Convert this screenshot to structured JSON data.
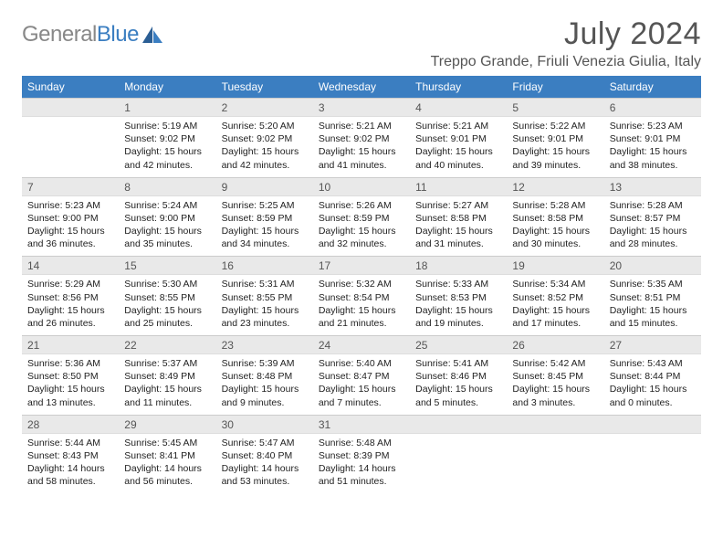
{
  "brand": {
    "part1": "General",
    "part2": "Blue"
  },
  "title": "July 2024",
  "location": "Treppo Grande, Friuli Venezia Giulia, Italy",
  "colors": {
    "header_bg": "#3b7ec1",
    "header_fg": "#ffffff",
    "daynum_bg": "#e9e9e9",
    "text": "#333333"
  },
  "weekdays": [
    "Sunday",
    "Monday",
    "Tuesday",
    "Wednesday",
    "Thursday",
    "Friday",
    "Saturday"
  ],
  "first_weekday_index": 1,
  "days": [
    {
      "n": 1,
      "sr": "5:19 AM",
      "ss": "9:02 PM",
      "dl": "15 hours and 42 minutes"
    },
    {
      "n": 2,
      "sr": "5:20 AM",
      "ss": "9:02 PM",
      "dl": "15 hours and 42 minutes"
    },
    {
      "n": 3,
      "sr": "5:21 AM",
      "ss": "9:02 PM",
      "dl": "15 hours and 41 minutes"
    },
    {
      "n": 4,
      "sr": "5:21 AM",
      "ss": "9:01 PM",
      "dl": "15 hours and 40 minutes"
    },
    {
      "n": 5,
      "sr": "5:22 AM",
      "ss": "9:01 PM",
      "dl": "15 hours and 39 minutes"
    },
    {
      "n": 6,
      "sr": "5:23 AM",
      "ss": "9:01 PM",
      "dl": "15 hours and 38 minutes"
    },
    {
      "n": 7,
      "sr": "5:23 AM",
      "ss": "9:00 PM",
      "dl": "15 hours and 36 minutes"
    },
    {
      "n": 8,
      "sr": "5:24 AM",
      "ss": "9:00 PM",
      "dl": "15 hours and 35 minutes"
    },
    {
      "n": 9,
      "sr": "5:25 AM",
      "ss": "8:59 PM",
      "dl": "15 hours and 34 minutes"
    },
    {
      "n": 10,
      "sr": "5:26 AM",
      "ss": "8:59 PM",
      "dl": "15 hours and 32 minutes"
    },
    {
      "n": 11,
      "sr": "5:27 AM",
      "ss": "8:58 PM",
      "dl": "15 hours and 31 minutes"
    },
    {
      "n": 12,
      "sr": "5:28 AM",
      "ss": "8:58 PM",
      "dl": "15 hours and 30 minutes"
    },
    {
      "n": 13,
      "sr": "5:28 AM",
      "ss": "8:57 PM",
      "dl": "15 hours and 28 minutes"
    },
    {
      "n": 14,
      "sr": "5:29 AM",
      "ss": "8:56 PM",
      "dl": "15 hours and 26 minutes"
    },
    {
      "n": 15,
      "sr": "5:30 AM",
      "ss": "8:55 PM",
      "dl": "15 hours and 25 minutes"
    },
    {
      "n": 16,
      "sr": "5:31 AM",
      "ss": "8:55 PM",
      "dl": "15 hours and 23 minutes"
    },
    {
      "n": 17,
      "sr": "5:32 AM",
      "ss": "8:54 PM",
      "dl": "15 hours and 21 minutes"
    },
    {
      "n": 18,
      "sr": "5:33 AM",
      "ss": "8:53 PM",
      "dl": "15 hours and 19 minutes"
    },
    {
      "n": 19,
      "sr": "5:34 AM",
      "ss": "8:52 PM",
      "dl": "15 hours and 17 minutes"
    },
    {
      "n": 20,
      "sr": "5:35 AM",
      "ss": "8:51 PM",
      "dl": "15 hours and 15 minutes"
    },
    {
      "n": 21,
      "sr": "5:36 AM",
      "ss": "8:50 PM",
      "dl": "15 hours and 13 minutes"
    },
    {
      "n": 22,
      "sr": "5:37 AM",
      "ss": "8:49 PM",
      "dl": "15 hours and 11 minutes"
    },
    {
      "n": 23,
      "sr": "5:39 AM",
      "ss": "8:48 PM",
      "dl": "15 hours and 9 minutes"
    },
    {
      "n": 24,
      "sr": "5:40 AM",
      "ss": "8:47 PM",
      "dl": "15 hours and 7 minutes"
    },
    {
      "n": 25,
      "sr": "5:41 AM",
      "ss": "8:46 PM",
      "dl": "15 hours and 5 minutes"
    },
    {
      "n": 26,
      "sr": "5:42 AM",
      "ss": "8:45 PM",
      "dl": "15 hours and 3 minutes"
    },
    {
      "n": 27,
      "sr": "5:43 AM",
      "ss": "8:44 PM",
      "dl": "15 hours and 0 minutes"
    },
    {
      "n": 28,
      "sr": "5:44 AM",
      "ss": "8:43 PM",
      "dl": "14 hours and 58 minutes"
    },
    {
      "n": 29,
      "sr": "5:45 AM",
      "ss": "8:41 PM",
      "dl": "14 hours and 56 minutes"
    },
    {
      "n": 30,
      "sr": "5:47 AM",
      "ss": "8:40 PM",
      "dl": "14 hours and 53 minutes"
    },
    {
      "n": 31,
      "sr": "5:48 AM",
      "ss": "8:39 PM",
      "dl": "14 hours and 51 minutes"
    }
  ],
  "labels": {
    "sunrise": "Sunrise:",
    "sunset": "Sunset:",
    "daylight": "Daylight:"
  }
}
